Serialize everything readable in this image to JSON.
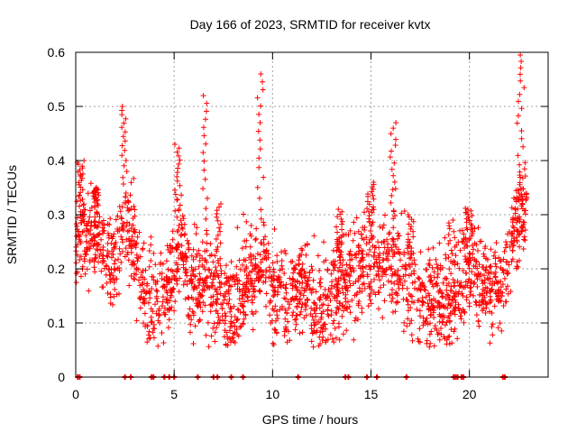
{
  "colors": {
    "marker": "#ff0000",
    "grid": "#a0a0a0",
    "axis": "#000000",
    "background": "#ffffff"
  },
  "chart_data": {
    "type": "scatter",
    "marker": "plus",
    "title": "Day 166 of 2023, SRMTID for receiver kvtx",
    "xlabel": "GPS time / hours",
    "ylabel": "SRMTID / TECUs",
    "xlim": [
      0,
      24
    ],
    "ylim": [
      0,
      0.6
    ],
    "xticks": [
      0,
      5,
      10,
      15,
      20
    ],
    "xtick_labels": [
      "0",
      "5",
      "10",
      "15",
      "20"
    ],
    "yticks": [
      0,
      0.1,
      0.2,
      0.3,
      0.4,
      0.5,
      0.6
    ],
    "ytick_labels": [
      "0",
      "0.1",
      "0.2",
      "0.3",
      "0.4",
      "0.5",
      "0.6"
    ],
    "grid": true,
    "profile": [
      [
        0.0,
        0.23
      ],
      [
        0.3,
        0.3
      ],
      [
        0.5,
        0.24
      ],
      [
        1.0,
        0.28
      ],
      [
        1.5,
        0.22
      ],
      [
        2.0,
        0.2
      ],
      [
        2.5,
        0.3
      ],
      [
        3.0,
        0.24
      ],
      [
        3.5,
        0.15
      ],
      [
        4.0,
        0.14
      ],
      [
        4.5,
        0.15
      ],
      [
        5.0,
        0.2
      ],
      [
        5.3,
        0.26
      ],
      [
        5.7,
        0.19
      ],
      [
        6.0,
        0.17
      ],
      [
        6.5,
        0.18
      ],
      [
        7.0,
        0.16
      ],
      [
        7.5,
        0.14
      ],
      [
        8.0,
        0.12
      ],
      [
        8.5,
        0.17
      ],
      [
        9.0,
        0.19
      ],
      [
        9.5,
        0.22
      ],
      [
        10.0,
        0.17
      ],
      [
        10.5,
        0.15
      ],
      [
        11.0,
        0.16
      ],
      [
        11.5,
        0.17
      ],
      [
        12.0,
        0.14
      ],
      [
        12.5,
        0.13
      ],
      [
        13.0,
        0.16
      ],
      [
        13.5,
        0.18
      ],
      [
        14.0,
        0.19
      ],
      [
        14.5,
        0.2
      ],
      [
        15.0,
        0.23
      ],
      [
        15.5,
        0.21
      ],
      [
        16.0,
        0.22
      ],
      [
        16.5,
        0.19
      ],
      [
        17.0,
        0.17
      ],
      [
        17.5,
        0.15
      ],
      [
        18.0,
        0.14
      ],
      [
        18.5,
        0.14
      ],
      [
        19.0,
        0.13
      ],
      [
        19.5,
        0.18
      ],
      [
        20.0,
        0.21
      ],
      [
        20.5,
        0.18
      ],
      [
        21.0,
        0.16
      ],
      [
        21.5,
        0.17
      ],
      [
        22.0,
        0.22
      ],
      [
        22.5,
        0.3
      ],
      [
        22.9,
        0.33
      ]
    ],
    "spikes": [
      {
        "x": 0.25,
        "y": 0.4
      },
      {
        "x": 1.0,
        "y": 0.35
      },
      {
        "x": 2.5,
        "y": 0.5
      },
      {
        "x": 5.2,
        "y": 0.43
      },
      {
        "x": 6.6,
        "y": 0.52
      },
      {
        "x": 7.2,
        "y": 0.32
      },
      {
        "x": 9.4,
        "y": 0.56
      },
      {
        "x": 13.4,
        "y": 0.31
      },
      {
        "x": 15.0,
        "y": 0.36
      },
      {
        "x": 16.1,
        "y": 0.47
      },
      {
        "x": 17.0,
        "y": 0.3
      },
      {
        "x": 19.1,
        "y": 0.29
      },
      {
        "x": 20.0,
        "y": 0.31
      },
      {
        "x": 22.6,
        "y": 0.595
      }
    ],
    "zero_marks": [
      0.1,
      0.2,
      2.5,
      2.8,
      3.85,
      3.95,
      4.5,
      4.75,
      5.0,
      6.2,
      7.0,
      7.2,
      7.9,
      8.5,
      11.3,
      13.7,
      13.85,
      14.8,
      15.3,
      16.8,
      19.2,
      19.3,
      19.4,
      19.6,
      19.7,
      21.7,
      21.8
    ],
    "point_count": 2200
  }
}
